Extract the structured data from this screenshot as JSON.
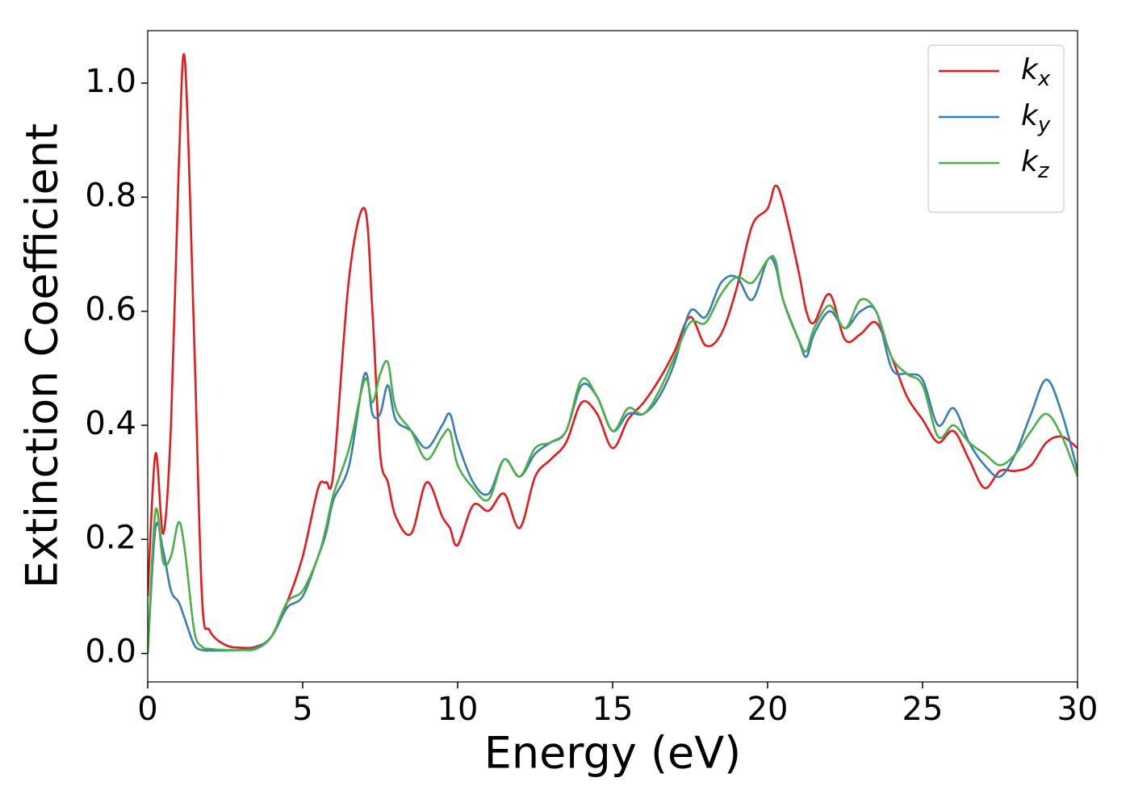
{
  "chart_data": {
    "type": "line",
    "xlabel": "Energy (eV)",
    "ylabel": "Extinction Coefficient",
    "x": [
      0,
      0.25,
      0.5,
      0.75,
      1.0,
      1.2,
      1.5,
      1.75,
      2,
      2.5,
      3,
      3.5,
      4,
      4.5,
      5,
      5.5,
      5.75,
      6,
      6.5,
      7,
      7.25,
      7.5,
      7.75,
      8,
      8.5,
      9,
      9.5,
      9.75,
      10,
      10.5,
      11,
      11.5,
      12,
      12.5,
      13,
      13.5,
      14,
      14.5,
      15,
      15.5,
      16,
      16.5,
      17,
      17.5,
      18,
      18.5,
      19,
      19.5,
      20,
      20.25,
      20.5,
      21,
      21.25,
      21.5,
      22,
      22.5,
      23,
      23.5,
      24,
      24.5,
      25,
      25.5,
      26,
      26.5,
      27,
      27.5,
      28,
      28.5,
      29,
      29.5,
      30
    ],
    "series": [
      {
        "name": "kx",
        "color": "#e41a1c",
        "values": [
          0.1,
          0.35,
          0.21,
          0.4,
          0.85,
          1.04,
          0.55,
          0.1,
          0.04,
          0.015,
          0.01,
          0.012,
          0.03,
          0.09,
          0.17,
          0.29,
          0.3,
          0.32,
          0.66,
          0.78,
          0.6,
          0.35,
          0.3,
          0.24,
          0.21,
          0.3,
          0.24,
          0.22,
          0.19,
          0.26,
          0.25,
          0.28,
          0.22,
          0.31,
          0.34,
          0.37,
          0.44,
          0.42,
          0.36,
          0.41,
          0.44,
          0.48,
          0.53,
          0.59,
          0.54,
          0.56,
          0.64,
          0.75,
          0.78,
          0.82,
          0.79,
          0.67,
          0.6,
          0.58,
          0.63,
          0.55,
          0.56,
          0.58,
          0.52,
          0.45,
          0.41,
          0.37,
          0.39,
          0.34,
          0.29,
          0.32,
          0.32,
          0.33,
          0.37,
          0.38,
          0.36
        ]
      },
      {
        "name": "ky",
        "color": "#377eb8",
        "values": [
          0.0,
          0.22,
          0.18,
          0.11,
          0.09,
          0.06,
          0.015,
          0.006,
          0.005,
          0.005,
          0.006,
          0.01,
          0.03,
          0.08,
          0.1,
          0.17,
          0.21,
          0.27,
          0.33,
          0.49,
          0.42,
          0.42,
          0.47,
          0.41,
          0.39,
          0.36,
          0.4,
          0.42,
          0.37,
          0.3,
          0.28,
          0.34,
          0.31,
          0.35,
          0.37,
          0.39,
          0.47,
          0.45,
          0.39,
          0.42,
          0.42,
          0.45,
          0.51,
          0.6,
          0.59,
          0.65,
          0.66,
          0.62,
          0.69,
          0.68,
          0.62,
          0.55,
          0.52,
          0.56,
          0.6,
          0.57,
          0.6,
          0.6,
          0.5,
          0.49,
          0.48,
          0.4,
          0.43,
          0.37,
          0.33,
          0.31,
          0.35,
          0.42,
          0.48,
          0.42,
          0.32
        ]
      },
      {
        "name": "kz",
        "color": "#4daf4a",
        "values": [
          0.0,
          0.25,
          0.16,
          0.17,
          0.23,
          0.18,
          0.04,
          0.012,
          0.008,
          0.006,
          0.006,
          0.008,
          0.03,
          0.09,
          0.11,
          0.17,
          0.22,
          0.28,
          0.36,
          0.48,
          0.44,
          0.49,
          0.51,
          0.43,
          0.39,
          0.34,
          0.38,
          0.39,
          0.33,
          0.29,
          0.27,
          0.34,
          0.31,
          0.36,
          0.37,
          0.39,
          0.48,
          0.45,
          0.39,
          0.43,
          0.42,
          0.46,
          0.52,
          0.58,
          0.58,
          0.63,
          0.66,
          0.65,
          0.69,
          0.69,
          0.62,
          0.55,
          0.53,
          0.57,
          0.61,
          0.57,
          0.62,
          0.6,
          0.52,
          0.49,
          0.47,
          0.38,
          0.4,
          0.37,
          0.35,
          0.33,
          0.35,
          0.39,
          0.42,
          0.38,
          0.31
        ]
      }
    ],
    "xlim": [
      0,
      30
    ],
    "xticks": [
      0,
      5,
      10,
      15,
      20,
      25,
      30
    ],
    "ylim": [
      -0.05,
      1.092
    ],
    "yticks": [
      {
        "value": 0,
        "label": "0.0"
      },
      0.2,
      0.4,
      0.6,
      0.8,
      {
        "value": 1,
        "label": "1.0"
      }
    ],
    "legend": "upper right",
    "grid": false
  }
}
